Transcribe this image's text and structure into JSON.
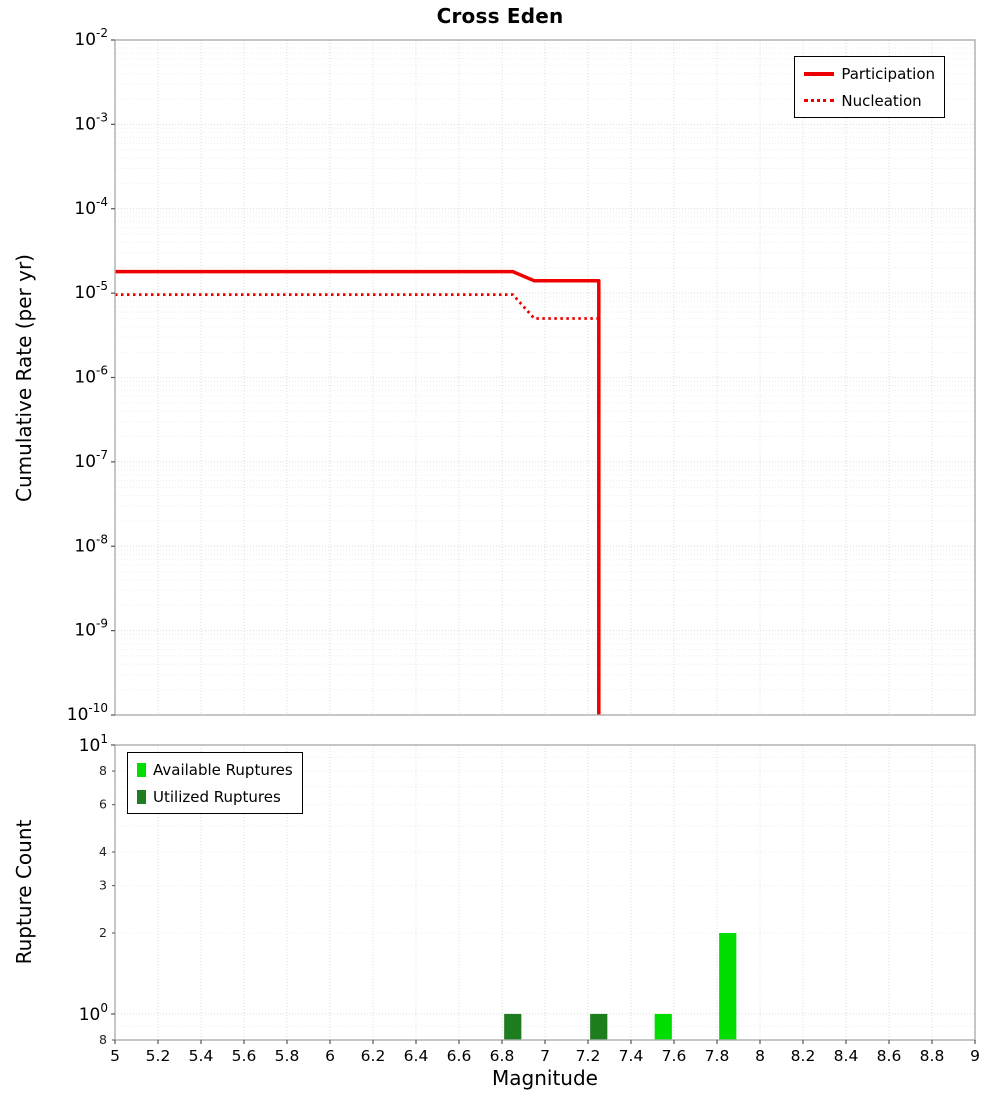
{
  "title": "Cross Eden",
  "colors": {
    "participation": "#ee0000",
    "nucleation": "#ee0000",
    "available": "#00dd00",
    "utilized": "#1e7d1e",
    "frame": "#adadad",
    "tick": "#555555",
    "grid_major": "#dcdcdc",
    "grid_minor": "#eeeeee"
  },
  "chart_data": [
    {
      "type": "line",
      "panel": "top",
      "title": "Cross Eden",
      "xlabel": "Magnitude",
      "ylabel": "Cumulative Rate (per yr)",
      "xlim": [
        5,
        9
      ],
      "x_tick_step": 0.2,
      "yscale": "log",
      "ylim": [
        1e-10,
        0.01
      ],
      "y_tick_exponents": [
        -2,
        -3,
        -4,
        -5,
        -6,
        -7,
        -8,
        -9,
        -10
      ],
      "grid": true,
      "legend_position": "top-right",
      "series": [
        {
          "name": "Participation",
          "style": "solid",
          "color": "#ee0000",
          "line_width": 3.5,
          "points": [
            [
              5.0,
              1.8e-05
            ],
            [
              6.85,
              1.8e-05
            ],
            [
              6.95,
              1.4e-05
            ],
            [
              7.25,
              1.4e-05
            ],
            [
              7.25,
              1e-10
            ]
          ]
        },
        {
          "name": "Nucleation",
          "style": "dotted",
          "color": "#ee0000",
          "line_width": 2.8,
          "points": [
            [
              5.0,
              9.6e-06
            ],
            [
              6.85,
              9.6e-06
            ],
            [
              6.95,
              5e-06
            ],
            [
              7.25,
              5e-06
            ],
            [
              7.25,
              1e-10
            ]
          ]
        }
      ]
    },
    {
      "type": "bar",
      "panel": "bottom",
      "xlabel": "Magnitude",
      "ylabel": "Rupture Count",
      "xlim": [
        5,
        9
      ],
      "x_tick_step": 0.2,
      "x_tick_labels": [
        "5",
        "5.2",
        "5.4",
        "5.6",
        "5.8",
        "6",
        "6.2",
        "6.4",
        "6.6",
        "6.8",
        "7",
        "7.2",
        "7.4",
        "7.6",
        "7.8",
        "8",
        "8.2",
        "8.4",
        "8.6",
        "8.8",
        "9"
      ],
      "yscale": "log",
      "ylim": [
        0.8,
        10
      ],
      "y_major_ticks": [
        {
          "value": 10,
          "base": "10",
          "exp": "1"
        },
        {
          "value": 1,
          "base": "10",
          "exp": "0"
        }
      ],
      "y_minor_ticks": [
        {
          "value": 8,
          "label": "8"
        },
        {
          "value": 6,
          "label": "6"
        },
        {
          "value": 4,
          "label": "4"
        },
        {
          "value": 3,
          "label": "3"
        },
        {
          "value": 2,
          "label": "2"
        },
        {
          "value": 0.8,
          "label": "8"
        }
      ],
      "bar_width_mag": 0.08,
      "grid": true,
      "legend_position": "top-left",
      "series": [
        {
          "name": "Available Ruptures",
          "color": "#00dd00",
          "bars": [
            {
              "magnitude": 7.55,
              "count": 1
            },
            {
              "magnitude": 7.85,
              "count": 2
            }
          ]
        },
        {
          "name": "Utilized Ruptures",
          "color": "#1e7d1e",
          "bars": [
            {
              "magnitude": 6.85,
              "count": 1
            },
            {
              "magnitude": 7.25,
              "count": 1
            }
          ]
        }
      ]
    }
  ]
}
